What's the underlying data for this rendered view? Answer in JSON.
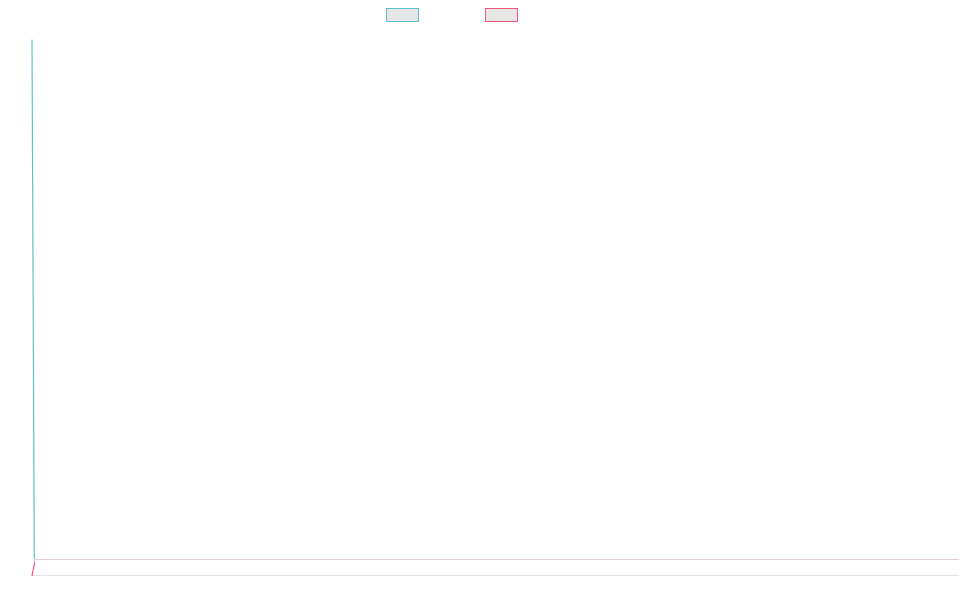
{
  "chart_data": {
    "type": "line",
    "title": "",
    "xlabel": "",
    "ylabel": "",
    "legend_position": "top-center",
    "grid": false,
    "series": [
      {
        "color": "#5bc2c9",
        "fill": "#e6e6e6",
        "shape": "near-vertical rise at first point, then flat along the bottom",
        "points": [
          [
            0,
            0.98
          ],
          [
            0.002,
            0.03
          ],
          [
            1.0,
            0.03
          ]
        ]
      },
      {
        "color": "#f0557a",
        "fill": "#e6e6e6",
        "shape": "short rise at first point, then flat along the bottom",
        "points": [
          [
            0,
            0.0
          ],
          [
            0.003,
            0.03
          ],
          [
            1.0,
            0.03
          ]
        ]
      }
    ],
    "xlim": [
      0,
      1
    ],
    "ylim": [
      0,
      1
    ]
  }
}
